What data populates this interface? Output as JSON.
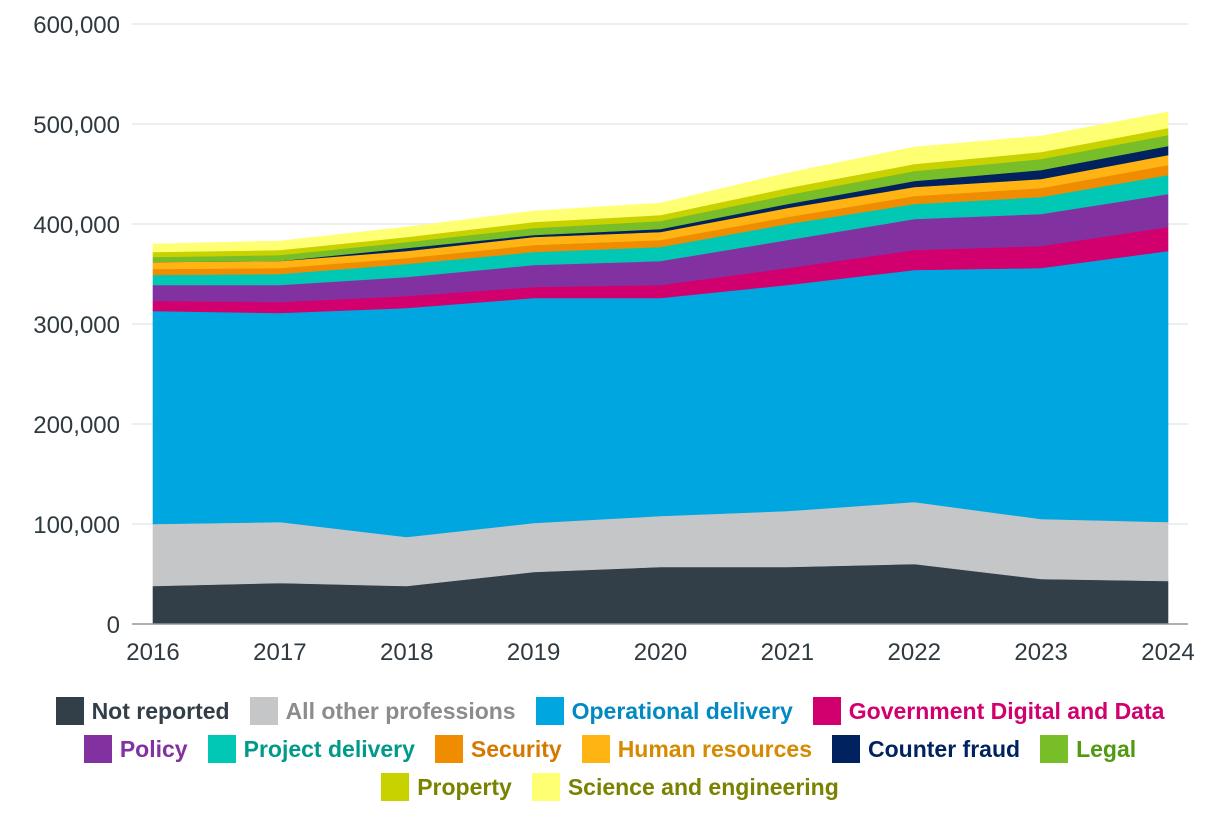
{
  "chart_data": {
    "type": "area",
    "stacked": true,
    "x": [
      "2016",
      "2017",
      "2018",
      "2019",
      "2020",
      "2021",
      "2022",
      "2023",
      "2024"
    ],
    "ylim": [
      0,
      600000
    ],
    "yticks": [
      "0",
      "100,000",
      "200,000",
      "300,000",
      "400,000",
      "500,000",
      "600,000"
    ],
    "ytick_values": [
      0,
      100000,
      200000,
      300000,
      400000,
      500000,
      600000
    ],
    "grid": true,
    "legend_position": "bottom",
    "series": [
      {
        "name": "Not reported",
        "color": "#333f48",
        "text_color": "#333f48",
        "values": [
          38000,
          41000,
          38000,
          52000,
          57000,
          57000,
          60000,
          45000,
          43000
        ]
      },
      {
        "name": "All other professions",
        "color": "#c4c6c8",
        "text_color": "#8a8c8e",
        "values": [
          62000,
          61000,
          49000,
          49000,
          51000,
          56000,
          62000,
          60000,
          59000
        ]
      },
      {
        "name": "Operational delivery",
        "color": "#00a6e0",
        "text_color": "#0089c2",
        "values": [
          213000,
          209000,
          229000,
          225000,
          218000,
          226000,
          232000,
          251000,
          271000
        ]
      },
      {
        "name": "Government Digital and Data",
        "color": "#d2006f",
        "text_color": "#d2006f",
        "values": [
          10000,
          11000,
          12000,
          11000,
          13000,
          17000,
          20000,
          22000,
          24000
        ]
      },
      {
        "name": "Policy",
        "color": "#8232a0",
        "text_color": "#8232a0",
        "values": [
          16000,
          17000,
          19000,
          22000,
          24000,
          28000,
          31000,
          32000,
          33000
        ]
      },
      {
        "name": "Project delivery",
        "color": "#00c8b4",
        "text_color": "#009a8a",
        "values": [
          10000,
          11000,
          13000,
          13000,
          14000,
          16000,
          15000,
          17000,
          19000
        ]
      },
      {
        "name": "Security",
        "color": "#f08c00",
        "text_color": "#d67800",
        "values": [
          6000,
          6000,
          6000,
          7000,
          7000,
          7000,
          8000,
          9000,
          10000
        ]
      },
      {
        "name": "Human resources",
        "color": "#ffb414",
        "text_color": "#d68a00",
        "values": [
          7000,
          7000,
          7000,
          8000,
          8000,
          9000,
          9000,
          9000,
          10000
        ]
      },
      {
        "name": "Counter fraud",
        "color": "#00235f",
        "text_color": "#00235f",
        "values": [
          0,
          0,
          3000,
          2000,
          3000,
          4000,
          6000,
          9000,
          9000
        ]
      },
      {
        "name": "Legal",
        "color": "#78be28",
        "text_color": "#4f9a10",
        "values": [
          5000,
          6000,
          6000,
          7000,
          8000,
          9000,
          10000,
          11000,
          11000
        ]
      },
      {
        "name": "Property",
        "color": "#c8d200",
        "text_color": "#7a8200",
        "values": [
          5000,
          5000,
          5000,
          6000,
          6000,
          7000,
          7000,
          7000,
          7000
        ]
      },
      {
        "name": "Science and engineering",
        "color": "#ffff73",
        "text_color": "#7a8200",
        "values": [
          8000,
          9000,
          10000,
          11000,
          12000,
          15000,
          17000,
          16000,
          16000
        ]
      }
    ]
  }
}
